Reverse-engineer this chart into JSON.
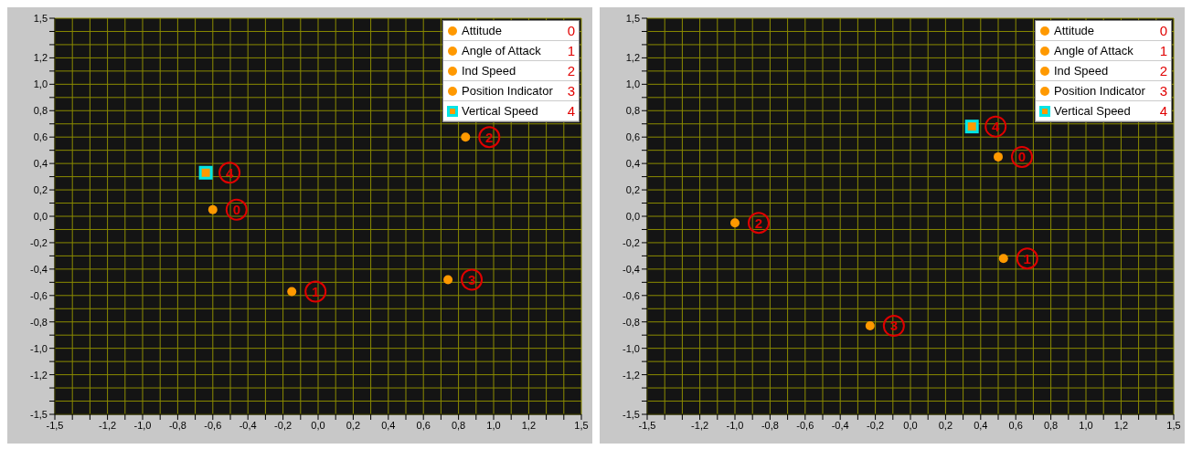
{
  "chart_data": [
    {
      "type": "scatter",
      "legend": "top right",
      "grid": true,
      "marker": "circle",
      "xlim": [
        -1.5,
        1.5
      ],
      "ylim": [
        -1.5,
        1.5
      ],
      "xticks": [
        {
          "value": -1.5,
          "label": "-1,5"
        },
        {
          "value": -1.4,
          "label": null
        },
        {
          "value": -1.3,
          "label": null
        },
        {
          "value": -1.2,
          "label": "-1,2"
        },
        {
          "value": -1.1,
          "label": null
        },
        {
          "value": -1.0,
          "label": "-1,0"
        },
        {
          "value": -0.9,
          "label": null
        },
        {
          "value": -0.8,
          "label": "-0,8"
        },
        {
          "value": -0.7,
          "label": null
        },
        {
          "value": -0.6,
          "label": "-0,6"
        },
        {
          "value": -0.5,
          "label": null
        },
        {
          "value": -0.4,
          "label": "-0,4"
        },
        {
          "value": -0.3,
          "label": null
        },
        {
          "value": -0.2,
          "label": "-0,2"
        },
        {
          "value": -0.1,
          "label": null
        },
        {
          "value": 0,
          "label": "0,0"
        },
        {
          "value": 0.1,
          "label": null
        },
        {
          "value": 0.2,
          "label": "0,2"
        },
        {
          "value": 0.3,
          "label": null
        },
        {
          "value": 0.4,
          "label": "0,4"
        },
        {
          "value": 0.5,
          "label": null
        },
        {
          "value": 0.6,
          "label": "0,6"
        },
        {
          "value": 0.7,
          "label": null
        },
        {
          "value": 0.8,
          "label": "0,8"
        },
        {
          "value": 0.9,
          "label": null
        },
        {
          "value": 1.0,
          "label": "1,0"
        },
        {
          "value": 1.1,
          "label": null
        },
        {
          "value": 1.2,
          "label": "1,2"
        },
        {
          "value": 1.3,
          "label": null
        },
        {
          "value": 1.4,
          "label": null
        },
        {
          "value": 1.5,
          "label": "1,5"
        }
      ],
      "yticks": [
        {
          "value": -1.5,
          "label": "-1,5"
        },
        {
          "value": -1.4,
          "label": null
        },
        {
          "value": -1.3,
          "label": null
        },
        {
          "value": -1.2,
          "label": "-1,2"
        },
        {
          "value": -1.1,
          "label": null
        },
        {
          "value": -1.0,
          "label": "-1,0"
        },
        {
          "value": -0.9,
          "label": null
        },
        {
          "value": -0.8,
          "label": "-0,8"
        },
        {
          "value": -0.7,
          "label": null
        },
        {
          "value": -0.6,
          "label": "-0,6"
        },
        {
          "value": -0.5,
          "label": null
        },
        {
          "value": -0.4,
          "label": "-0,4"
        },
        {
          "value": -0.3,
          "label": null
        },
        {
          "value": -0.2,
          "label": "-0,2"
        },
        {
          "value": -0.1,
          "label": null
        },
        {
          "value": 0,
          "label": "0,0"
        },
        {
          "value": 0.1,
          "label": null
        },
        {
          "value": 0.2,
          "label": "0,2"
        },
        {
          "value": 0.3,
          "label": null
        },
        {
          "value": 0.4,
          "label": "0,4"
        },
        {
          "value": 0.5,
          "label": null
        },
        {
          "value": 0.6,
          "label": "0,6"
        },
        {
          "value": 0.7,
          "label": null
        },
        {
          "value": 0.8,
          "label": "0,8"
        },
        {
          "value": 0.9,
          "label": null
        },
        {
          "value": 1.0,
          "label": "1,0"
        },
        {
          "value": 1.1,
          "label": null
        },
        {
          "value": 1.2,
          "label": "1,2"
        },
        {
          "value": 1.3,
          "label": null
        },
        {
          "value": 1.4,
          "label": null
        },
        {
          "value": 1.5,
          "label": "1,5"
        }
      ],
      "series": [
        {
          "name": "Attitude",
          "color": "#ff9900",
          "x": [
            -0.6
          ],
          "values": [
            0.05
          ]
        },
        {
          "name": "Angle of Attack",
          "color": "#ff9900",
          "x": [
            -0.15
          ],
          "values": [
            -0.57
          ]
        },
        {
          "name": "Ind Speed",
          "color": "#ff9900",
          "x": [
            0.84
          ],
          "values": [
            0.6
          ]
        },
        {
          "name": "Position Indicator",
          "color": "#ff9900",
          "x": [
            0.74
          ],
          "values": [
            -0.48
          ]
        },
        {
          "name": "Vertical Speed",
          "color": "#00e5e5",
          "marker": "square",
          "x": [
            -0.64
          ],
          "values": [
            0.33
          ]
        }
      ],
      "annotations": [
        {
          "text": "0",
          "x": -0.6,
          "y": 0.05
        },
        {
          "text": "1",
          "x": -0.15,
          "y": -0.57
        },
        {
          "text": "2",
          "x": 0.84,
          "y": 0.6
        },
        {
          "text": "3",
          "x": 0.74,
          "y": -0.48
        },
        {
          "text": "4",
          "x": -0.64,
          "y": 0.33
        }
      ]
    },
    {
      "type": "scatter",
      "legend": "top right",
      "grid": true,
      "marker": "circle",
      "xlim": [
        -1.5,
        1.5
      ],
      "ylim": [
        -1.5,
        1.5
      ],
      "xticks": [
        {
          "value": -1.5,
          "label": "-1,5"
        },
        {
          "value": -1.4,
          "label": null
        },
        {
          "value": -1.3,
          "label": null
        },
        {
          "value": -1.2,
          "label": "-1,2"
        },
        {
          "value": -1.1,
          "label": null
        },
        {
          "value": -1.0,
          "label": "-1,0"
        },
        {
          "value": -0.9,
          "label": null
        },
        {
          "value": -0.8,
          "label": "-0,8"
        },
        {
          "value": -0.7,
          "label": null
        },
        {
          "value": -0.6,
          "label": "-0,6"
        },
        {
          "value": -0.5,
          "label": null
        },
        {
          "value": -0.4,
          "label": "-0,4"
        },
        {
          "value": -0.3,
          "label": null
        },
        {
          "value": -0.2,
          "label": "-0,2"
        },
        {
          "value": -0.1,
          "label": null
        },
        {
          "value": 0,
          "label": "0,0"
        },
        {
          "value": 0.1,
          "label": null
        },
        {
          "value": 0.2,
          "label": "0,2"
        },
        {
          "value": 0.3,
          "label": null
        },
        {
          "value": 0.4,
          "label": "0,4"
        },
        {
          "value": 0.5,
          "label": null
        },
        {
          "value": 0.6,
          "label": "0,6"
        },
        {
          "value": 0.7,
          "label": null
        },
        {
          "value": 0.8,
          "label": "0,8"
        },
        {
          "value": 0.9,
          "label": null
        },
        {
          "value": 1.0,
          "label": "1,0"
        },
        {
          "value": 1.1,
          "label": null
        },
        {
          "value": 1.2,
          "label": "1,2"
        },
        {
          "value": 1.3,
          "label": null
        },
        {
          "value": 1.4,
          "label": null
        },
        {
          "value": 1.5,
          "label": "1,5"
        }
      ],
      "yticks": [
        {
          "value": -1.5,
          "label": "-1,5"
        },
        {
          "value": -1.4,
          "label": null
        },
        {
          "value": -1.3,
          "label": null
        },
        {
          "value": -1.2,
          "label": "-1,2"
        },
        {
          "value": -1.1,
          "label": null
        },
        {
          "value": -1.0,
          "label": "-1,0"
        },
        {
          "value": -0.9,
          "label": null
        },
        {
          "value": -0.8,
          "label": "-0,8"
        },
        {
          "value": -0.7,
          "label": null
        },
        {
          "value": -0.6,
          "label": "-0,6"
        },
        {
          "value": -0.5,
          "label": null
        },
        {
          "value": -0.4,
          "label": "-0,4"
        },
        {
          "value": -0.3,
          "label": null
        },
        {
          "value": -0.2,
          "label": "-0,2"
        },
        {
          "value": -0.1,
          "label": null
        },
        {
          "value": 0,
          "label": "0,0"
        },
        {
          "value": 0.1,
          "label": null
        },
        {
          "value": 0.2,
          "label": "0,2"
        },
        {
          "value": 0.3,
          "label": null
        },
        {
          "value": 0.4,
          "label": "0,4"
        },
        {
          "value": 0.5,
          "label": null
        },
        {
          "value": 0.6,
          "label": "0,6"
        },
        {
          "value": 0.7,
          "label": null
        },
        {
          "value": 0.8,
          "label": "0,8"
        },
        {
          "value": 0.9,
          "label": null
        },
        {
          "value": 1.0,
          "label": "1,0"
        },
        {
          "value": 1.1,
          "label": null
        },
        {
          "value": 1.2,
          "label": "1,2"
        },
        {
          "value": 1.3,
          "label": null
        },
        {
          "value": 1.4,
          "label": null
        },
        {
          "value": 1.5,
          "label": "1,5"
        }
      ],
      "series": [
        {
          "name": "Attitude",
          "color": "#ff9900",
          "x": [
            0.5
          ],
          "values": [
            0.45
          ]
        },
        {
          "name": "Angle of Attack",
          "color": "#ff9900",
          "x": [
            0.53
          ],
          "values": [
            -0.32
          ]
        },
        {
          "name": "Ind Speed",
          "color": "#ff9900",
          "x": [
            -1.0
          ],
          "values": [
            -0.05
          ]
        },
        {
          "name": "Position Indicator",
          "color": "#ff9900",
          "x": [
            -0.23
          ],
          "values": [
            -0.83
          ]
        },
        {
          "name": "Vertical Speed",
          "color": "#00e5e5",
          "marker": "square",
          "x": [
            0.35
          ],
          "values": [
            0.68
          ]
        }
      ],
      "annotations": [
        {
          "text": "0",
          "x": 0.5,
          "y": 0.45
        },
        {
          "text": "1",
          "x": 0.53,
          "y": -0.32
        },
        {
          "text": "2",
          "x": -1.0,
          "y": -0.05
        },
        {
          "text": "3",
          "x": -0.23,
          "y": -0.83
        },
        {
          "text": "4",
          "x": 0.35,
          "y": 0.68
        }
      ]
    }
  ]
}
